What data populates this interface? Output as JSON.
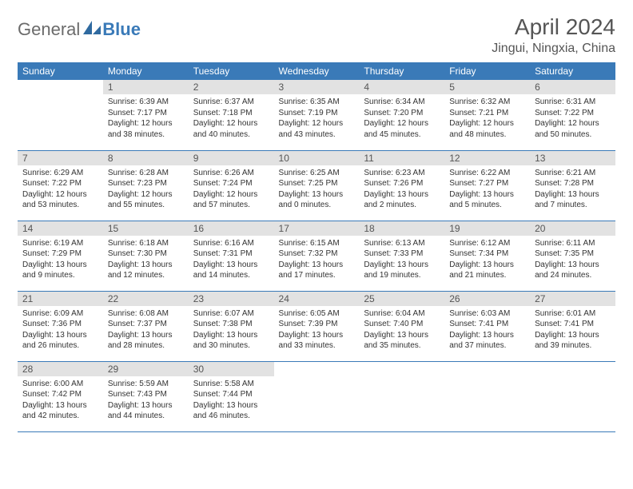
{
  "brand": {
    "part1": "General",
    "part2": "Blue"
  },
  "title": "April 2024",
  "location": "Jingui, Ningxia, China",
  "colors": {
    "header_bg": "#3a7ab8",
    "header_text": "#ffffff",
    "daynum_bg": "#e2e2e2",
    "border": "#3a7ab8",
    "text": "#333333",
    "title_text": "#555555"
  },
  "typography": {
    "title_fontsize": 28,
    "location_fontsize": 16,
    "weekday_fontsize": 12,
    "daynum_fontsize": 12,
    "body_fontsize": 10
  },
  "weekdays": [
    "Sunday",
    "Monday",
    "Tuesday",
    "Wednesday",
    "Thursday",
    "Friday",
    "Saturday"
  ],
  "weeks": [
    [
      {
        "n": "",
        "sr": "",
        "ss": "",
        "dl": ""
      },
      {
        "n": "1",
        "sr": "Sunrise: 6:39 AM",
        "ss": "Sunset: 7:17 PM",
        "dl": "Daylight: 12 hours and 38 minutes."
      },
      {
        "n": "2",
        "sr": "Sunrise: 6:37 AM",
        "ss": "Sunset: 7:18 PM",
        "dl": "Daylight: 12 hours and 40 minutes."
      },
      {
        "n": "3",
        "sr": "Sunrise: 6:35 AM",
        "ss": "Sunset: 7:19 PM",
        "dl": "Daylight: 12 hours and 43 minutes."
      },
      {
        "n": "4",
        "sr": "Sunrise: 6:34 AM",
        "ss": "Sunset: 7:20 PM",
        "dl": "Daylight: 12 hours and 45 minutes."
      },
      {
        "n": "5",
        "sr": "Sunrise: 6:32 AM",
        "ss": "Sunset: 7:21 PM",
        "dl": "Daylight: 12 hours and 48 minutes."
      },
      {
        "n": "6",
        "sr": "Sunrise: 6:31 AM",
        "ss": "Sunset: 7:22 PM",
        "dl": "Daylight: 12 hours and 50 minutes."
      }
    ],
    [
      {
        "n": "7",
        "sr": "Sunrise: 6:29 AM",
        "ss": "Sunset: 7:22 PM",
        "dl": "Daylight: 12 hours and 53 minutes."
      },
      {
        "n": "8",
        "sr": "Sunrise: 6:28 AM",
        "ss": "Sunset: 7:23 PM",
        "dl": "Daylight: 12 hours and 55 minutes."
      },
      {
        "n": "9",
        "sr": "Sunrise: 6:26 AM",
        "ss": "Sunset: 7:24 PM",
        "dl": "Daylight: 12 hours and 57 minutes."
      },
      {
        "n": "10",
        "sr": "Sunrise: 6:25 AM",
        "ss": "Sunset: 7:25 PM",
        "dl": "Daylight: 13 hours and 0 minutes."
      },
      {
        "n": "11",
        "sr": "Sunrise: 6:23 AM",
        "ss": "Sunset: 7:26 PM",
        "dl": "Daylight: 13 hours and 2 minutes."
      },
      {
        "n": "12",
        "sr": "Sunrise: 6:22 AM",
        "ss": "Sunset: 7:27 PM",
        "dl": "Daylight: 13 hours and 5 minutes."
      },
      {
        "n": "13",
        "sr": "Sunrise: 6:21 AM",
        "ss": "Sunset: 7:28 PM",
        "dl": "Daylight: 13 hours and 7 minutes."
      }
    ],
    [
      {
        "n": "14",
        "sr": "Sunrise: 6:19 AM",
        "ss": "Sunset: 7:29 PM",
        "dl": "Daylight: 13 hours and 9 minutes."
      },
      {
        "n": "15",
        "sr": "Sunrise: 6:18 AM",
        "ss": "Sunset: 7:30 PM",
        "dl": "Daylight: 13 hours and 12 minutes."
      },
      {
        "n": "16",
        "sr": "Sunrise: 6:16 AM",
        "ss": "Sunset: 7:31 PM",
        "dl": "Daylight: 13 hours and 14 minutes."
      },
      {
        "n": "17",
        "sr": "Sunrise: 6:15 AM",
        "ss": "Sunset: 7:32 PM",
        "dl": "Daylight: 13 hours and 17 minutes."
      },
      {
        "n": "18",
        "sr": "Sunrise: 6:13 AM",
        "ss": "Sunset: 7:33 PM",
        "dl": "Daylight: 13 hours and 19 minutes."
      },
      {
        "n": "19",
        "sr": "Sunrise: 6:12 AM",
        "ss": "Sunset: 7:34 PM",
        "dl": "Daylight: 13 hours and 21 minutes."
      },
      {
        "n": "20",
        "sr": "Sunrise: 6:11 AM",
        "ss": "Sunset: 7:35 PM",
        "dl": "Daylight: 13 hours and 24 minutes."
      }
    ],
    [
      {
        "n": "21",
        "sr": "Sunrise: 6:09 AM",
        "ss": "Sunset: 7:36 PM",
        "dl": "Daylight: 13 hours and 26 minutes."
      },
      {
        "n": "22",
        "sr": "Sunrise: 6:08 AM",
        "ss": "Sunset: 7:37 PM",
        "dl": "Daylight: 13 hours and 28 minutes."
      },
      {
        "n": "23",
        "sr": "Sunrise: 6:07 AM",
        "ss": "Sunset: 7:38 PM",
        "dl": "Daylight: 13 hours and 30 minutes."
      },
      {
        "n": "24",
        "sr": "Sunrise: 6:05 AM",
        "ss": "Sunset: 7:39 PM",
        "dl": "Daylight: 13 hours and 33 minutes."
      },
      {
        "n": "25",
        "sr": "Sunrise: 6:04 AM",
        "ss": "Sunset: 7:40 PM",
        "dl": "Daylight: 13 hours and 35 minutes."
      },
      {
        "n": "26",
        "sr": "Sunrise: 6:03 AM",
        "ss": "Sunset: 7:41 PM",
        "dl": "Daylight: 13 hours and 37 minutes."
      },
      {
        "n": "27",
        "sr": "Sunrise: 6:01 AM",
        "ss": "Sunset: 7:41 PM",
        "dl": "Daylight: 13 hours and 39 minutes."
      }
    ],
    [
      {
        "n": "28",
        "sr": "Sunrise: 6:00 AM",
        "ss": "Sunset: 7:42 PM",
        "dl": "Daylight: 13 hours and 42 minutes."
      },
      {
        "n": "29",
        "sr": "Sunrise: 5:59 AM",
        "ss": "Sunset: 7:43 PM",
        "dl": "Daylight: 13 hours and 44 minutes."
      },
      {
        "n": "30",
        "sr": "Sunrise: 5:58 AM",
        "ss": "Sunset: 7:44 PM",
        "dl": "Daylight: 13 hours and 46 minutes."
      },
      {
        "n": "",
        "sr": "",
        "ss": "",
        "dl": ""
      },
      {
        "n": "",
        "sr": "",
        "ss": "",
        "dl": ""
      },
      {
        "n": "",
        "sr": "",
        "ss": "",
        "dl": ""
      },
      {
        "n": "",
        "sr": "",
        "ss": "",
        "dl": ""
      }
    ]
  ]
}
